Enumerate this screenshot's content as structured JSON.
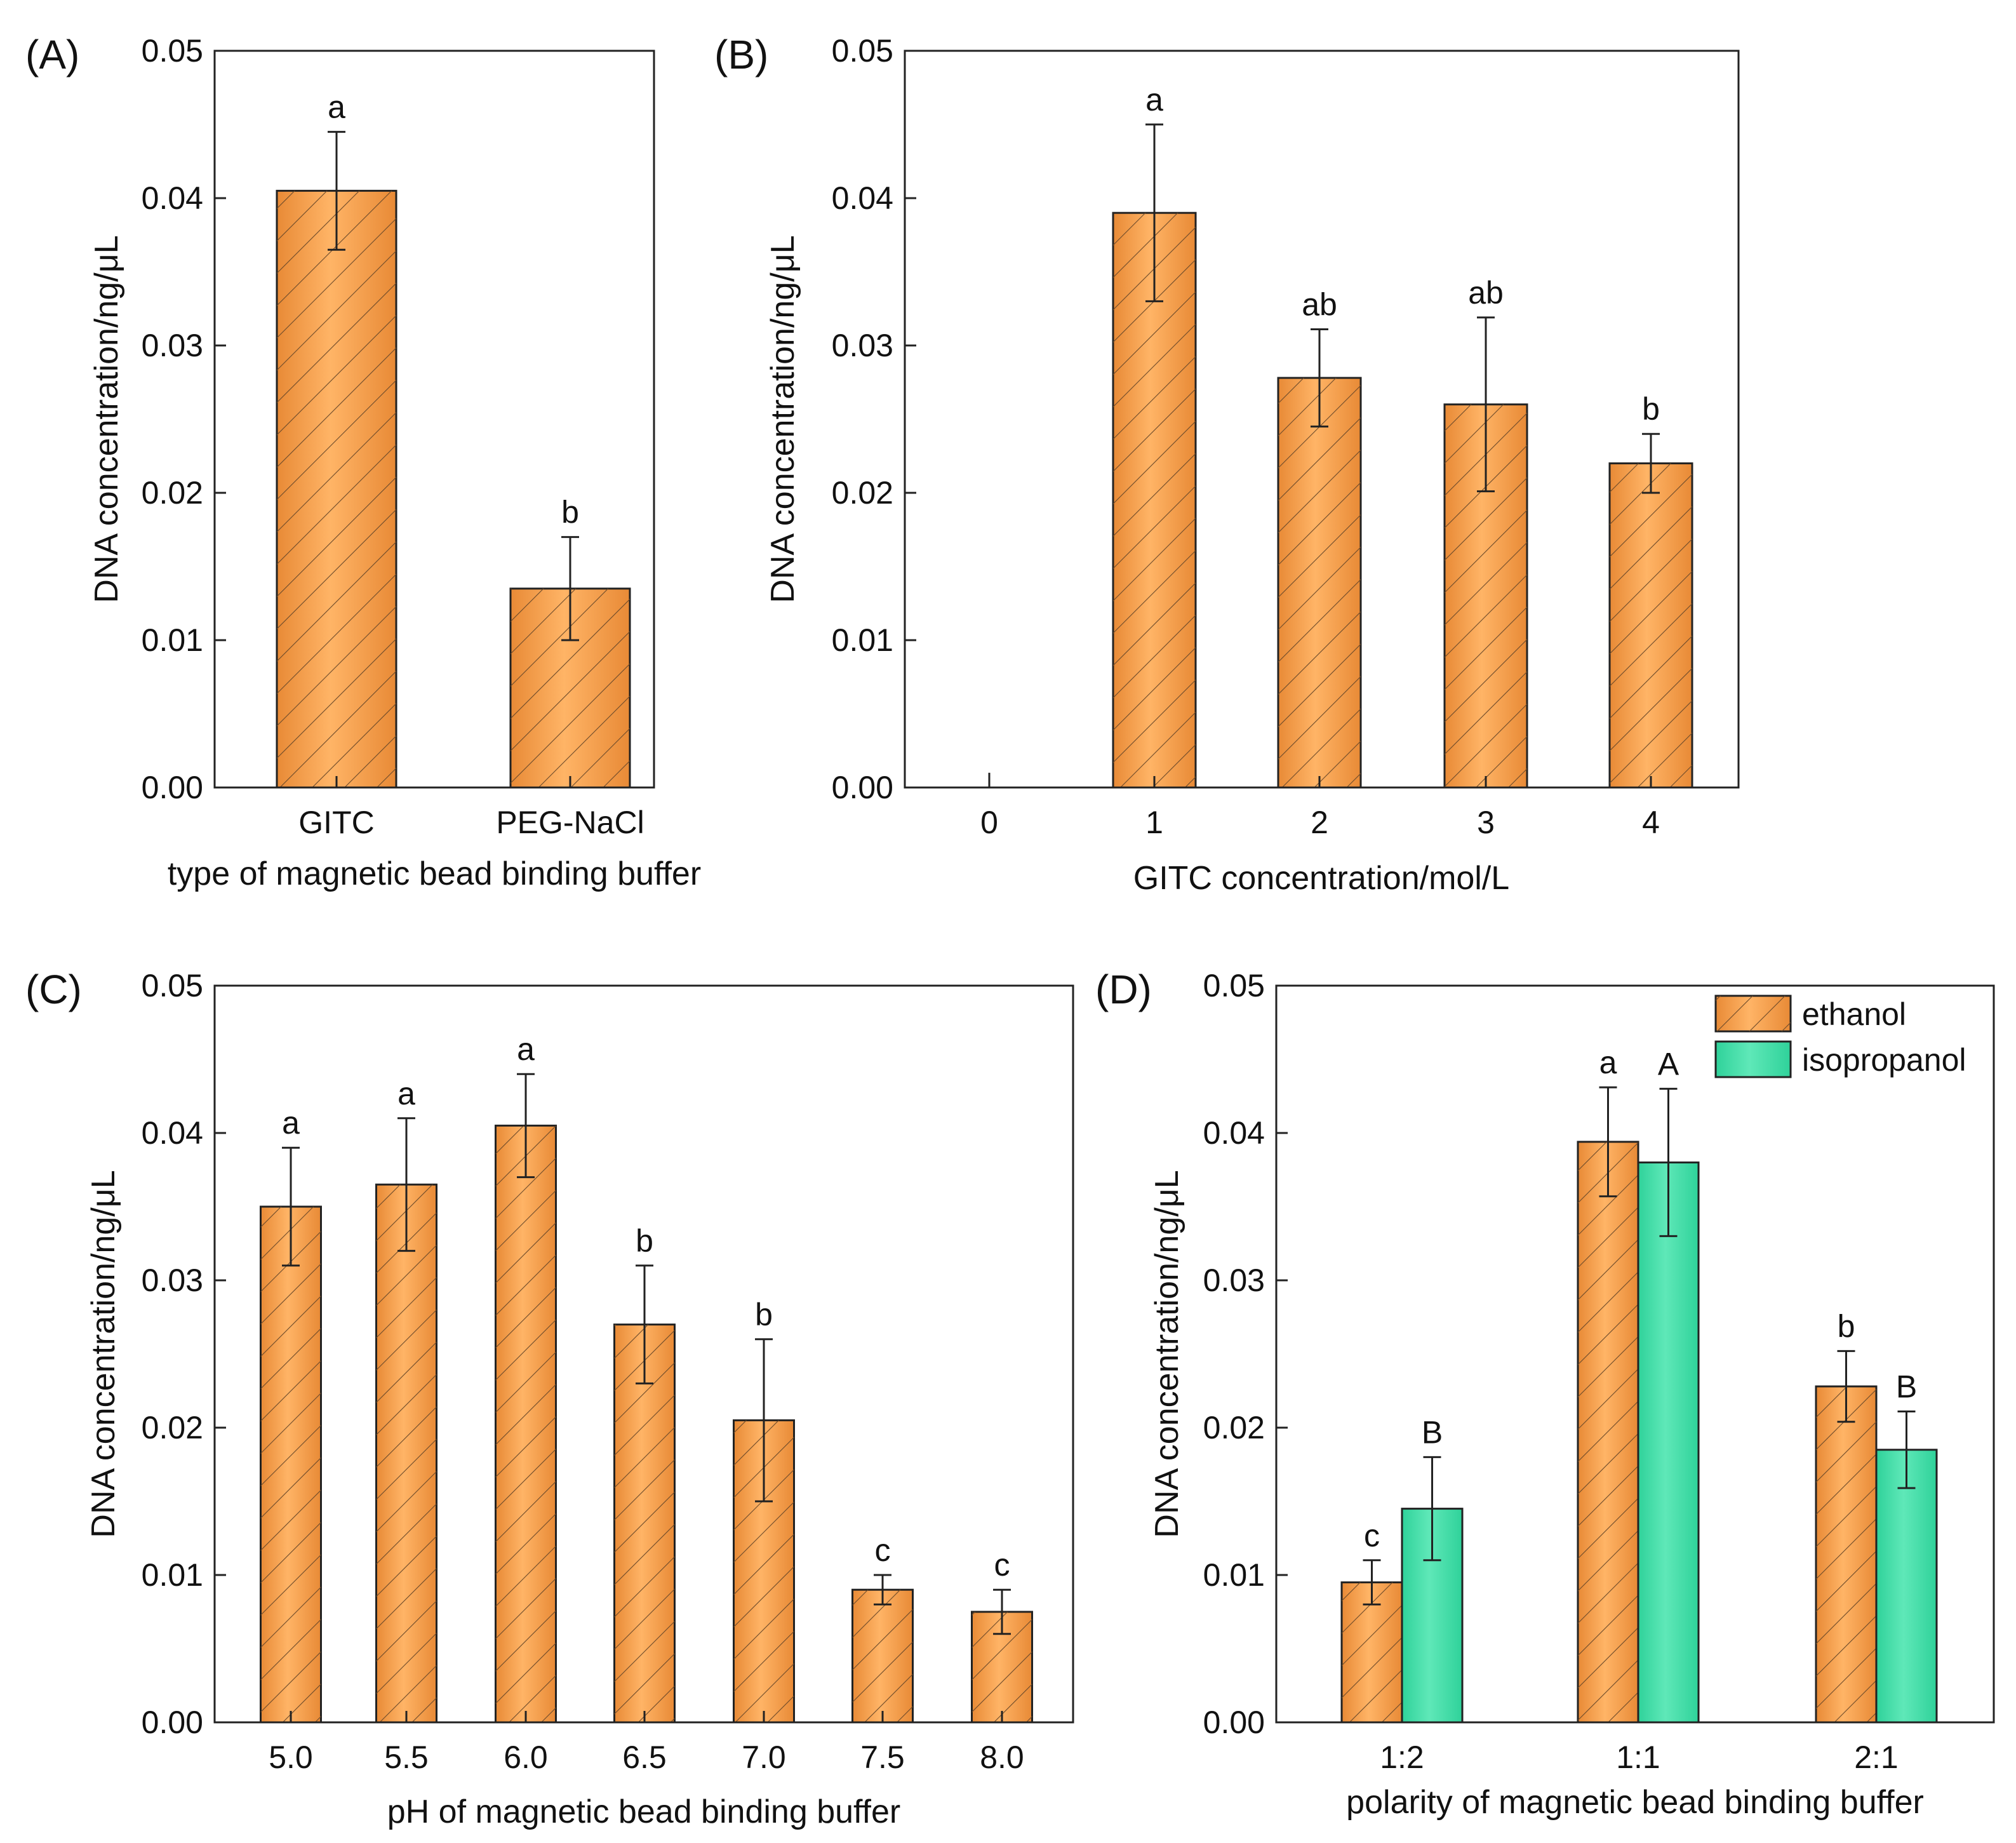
{
  "colors": {
    "ethanol_bar": "#f8a14e",
    "isopropanol_bar": "#3fdda4",
    "hatch": "#6b4a2a",
    "axis": "#222222"
  },
  "chart_data": [
    {
      "id": "A",
      "panel_label": "(A)",
      "type": "bar",
      "xlabel": "type of magnetic bead binding buffer",
      "ylabel": "DNA concentration/ng/μL",
      "ylim": [
        0,
        0.05
      ],
      "yticks": [
        "0.00",
        "0.01",
        "0.02",
        "0.03",
        "0.04",
        "0.05"
      ],
      "categories": [
        "GITC",
        "PEG-NaCl"
      ],
      "series": [
        {
          "name": "ethanol",
          "color": "#f8a14e",
          "hatch": true,
          "values": [
            0.0405,
            0.0135
          ],
          "errors": [
            0.004,
            0.0035
          ],
          "letters": [
            "a",
            "b"
          ]
        }
      ]
    },
    {
      "id": "B",
      "panel_label": "(B)",
      "type": "bar",
      "xlabel": "GITC concentration/mol/L",
      "ylabel": "DNA concentration/ng/μL",
      "ylim": [
        0,
        0.05
      ],
      "yticks": [
        "0.00",
        "0.01",
        "0.02",
        "0.03",
        "0.04",
        "0.05"
      ],
      "categories": [
        "0",
        "1",
        "2",
        "3",
        "4"
      ],
      "series": [
        {
          "name": "ethanol",
          "color": "#f8a14e",
          "hatch": true,
          "values": [
            0,
            0.039,
            0.0278,
            0.026,
            0.022
          ],
          "errors": [
            0.001,
            0.006,
            0.0033,
            0.0059,
            0.002
          ],
          "letters": [
            "",
            "a",
            "ab",
            "ab",
            "b"
          ]
        }
      ]
    },
    {
      "id": "C",
      "panel_label": "(C)",
      "type": "bar",
      "xlabel": "pH of magnetic bead binding buffer",
      "ylabel": "DNA concentration/ng/μL",
      "ylim": [
        0,
        0.05
      ],
      "yticks": [
        "0.00",
        "0.01",
        "0.02",
        "0.03",
        "0.04",
        "0.05"
      ],
      "categories": [
        "5.0",
        "5.5",
        "6.0",
        "6.5",
        "7.0",
        "7.5",
        "8.0"
      ],
      "series": [
        {
          "name": "ethanol",
          "color": "#f8a14e",
          "hatch": true,
          "values": [
            0.035,
            0.0365,
            0.0405,
            0.027,
            0.0205,
            0.009,
            0.0075
          ],
          "errors": [
            0.004,
            0.0045,
            0.0035,
            0.004,
            0.0055,
            0.001,
            0.0015
          ],
          "letters": [
            "a",
            "a",
            "a",
            "b",
            "b",
            "c",
            "c"
          ]
        }
      ]
    },
    {
      "id": "D",
      "panel_label": "(D)",
      "type": "bar",
      "xlabel": "polarity of magnetic bead binding buffer",
      "ylabel": "DNA concentration/ng/μL",
      "ylim": [
        0,
        0.05
      ],
      "yticks": [
        "0.00",
        "0.01",
        "0.02",
        "0.03",
        "0.04",
        "0.05"
      ],
      "categories": [
        "1:2",
        "1:1",
        "2:1"
      ],
      "legend": {
        "position": "top-right",
        "entries": [
          "ethanol",
          "isopropanol"
        ]
      },
      "series": [
        {
          "name": "ethanol",
          "color": "#f8a14e",
          "hatch": true,
          "values": [
            0.0095,
            0.0394,
            0.0228
          ],
          "errors": [
            0.0015,
            0.0037,
            0.0024
          ],
          "letters": [
            "c",
            "a",
            "b"
          ]
        },
        {
          "name": "isopropanol",
          "color": "#3fdda4",
          "hatch": false,
          "values": [
            0.0145,
            0.038,
            0.0185
          ],
          "errors": [
            0.0035,
            0.005,
            0.0026
          ],
          "letters": [
            "B",
            "A",
            "B"
          ]
        }
      ]
    }
  ]
}
